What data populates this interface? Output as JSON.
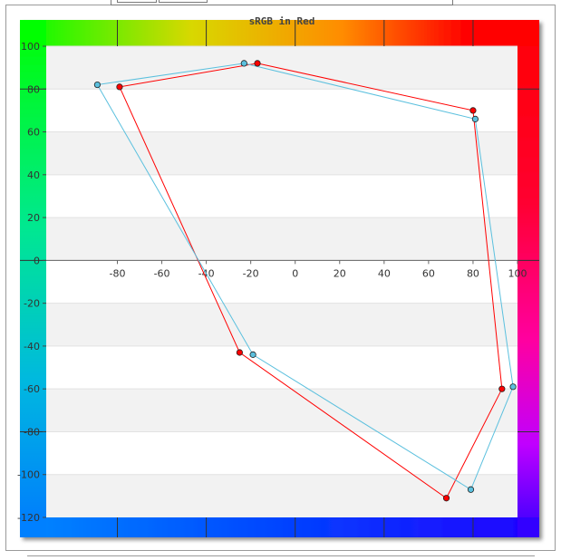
{
  "chart_data": {
    "type": "scatter",
    "title": "sRGB in Red",
    "xlabel": "",
    "ylabel": "",
    "xlim": [
      -112,
      100
    ],
    "ylim": [
      -120,
      100
    ],
    "x_ticks": [
      -80,
      -60,
      -40,
      -20,
      0,
      20,
      40,
      60,
      80,
      100
    ],
    "y_ticks": [
      100,
      80,
      60,
      40,
      20,
      0,
      -20,
      -40,
      -60,
      -80,
      -100,
      -120
    ],
    "grid": true,
    "legend": "none",
    "background": "hue gradient frame (green, yellow, red, magenta, blue, cyan)",
    "series": [
      {
        "color": "#ff0000",
        "closed": true,
        "points": [
          {
            "x": -17,
            "y": 92
          },
          {
            "x": 80,
            "y": 70
          },
          {
            "x": 93,
            "y": -60
          },
          {
            "x": 68,
            "y": -111
          },
          {
            "x": -25,
            "y": -43
          },
          {
            "x": -79,
            "y": 81
          }
        ]
      },
      {
        "color": "#5bc0de",
        "closed": true,
        "points": [
          {
            "x": -23,
            "y": 92
          },
          {
            "x": 81,
            "y": 66
          },
          {
            "x": 98,
            "y": -59
          },
          {
            "x": 79,
            "y": -107
          },
          {
            "x": -19,
            "y": -44
          },
          {
            "x": -89,
            "y": 82
          }
        ]
      }
    ]
  }
}
